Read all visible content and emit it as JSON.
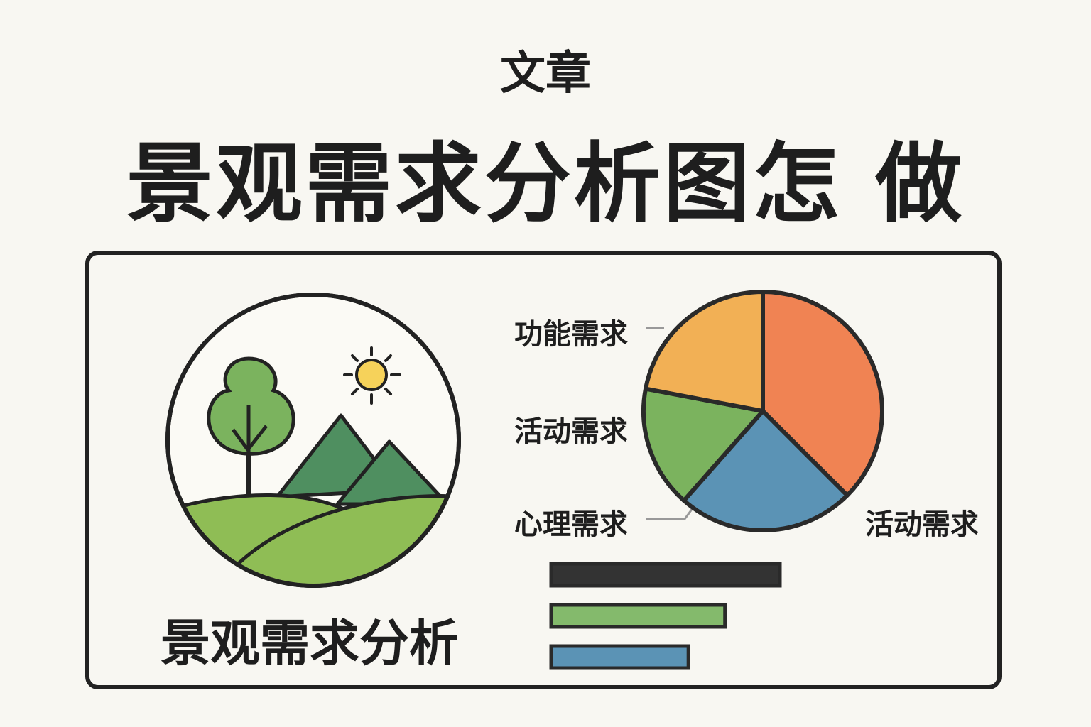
{
  "header": {
    "subtitle": "文章",
    "title": "景观需求分析图怎 做"
  },
  "card": {
    "label": "景观需求分析"
  },
  "pie": {
    "labels": [
      "功能需求",
      "活动需求",
      "心理需求",
      "活动需求"
    ],
    "slices": [
      {
        "share": 0.375,
        "color": "#f08353"
      },
      {
        "share": 0.24,
        "color": "#5b93b5"
      },
      {
        "share": 0.165,
        "color": "#7bb35e"
      },
      {
        "share": 0.22,
        "color": "#f2b055"
      }
    ]
  },
  "bars": [
    {
      "value": 1.0,
      "color": "#333333"
    },
    {
      "value": 0.76,
      "color": "#84ba6c"
    },
    {
      "value": 0.6,
      "color": "#5b93b5"
    }
  ],
  "colors": {
    "background": "#f8f7f2",
    "outline": "#222222",
    "tree": "#7bb35e",
    "mountain": "#4f8f60",
    "hill": "#8fbd55",
    "sun": "#f6d25a"
  }
}
